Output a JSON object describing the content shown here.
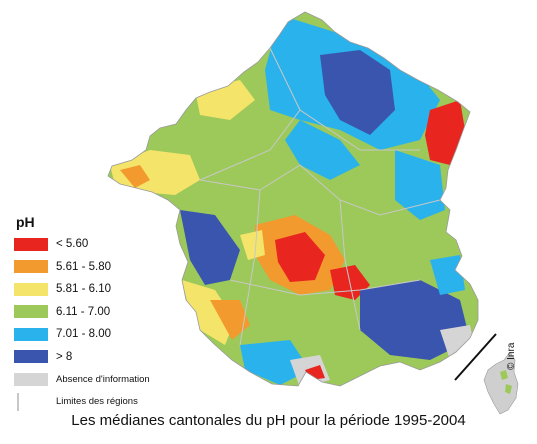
{
  "legend": {
    "title": "pH",
    "items": [
      {
        "label": "< 5.60",
        "color": "#e8251f"
      },
      {
        "label": "5.61 - 5.80",
        "color": "#f39a2e"
      },
      {
        "label": "5.81 - 6.10",
        "color": "#f5e46a"
      },
      {
        "label": "6.11 - 7.00",
        "color": "#9cc95a"
      },
      {
        "label": "7.01 - 8.00",
        "color": "#2ab2ec"
      },
      {
        "label": "> 8",
        "color": "#3a55ad"
      },
      {
        "label": "Absence d'information",
        "color": "#d5d5d5"
      },
      {
        "label": "Limites des régions",
        "color": "#c8c8c8"
      }
    ]
  },
  "caption": "Les médianes cantonales du pH pour la période 1995-2004",
  "copyright": "© Inra"
}
